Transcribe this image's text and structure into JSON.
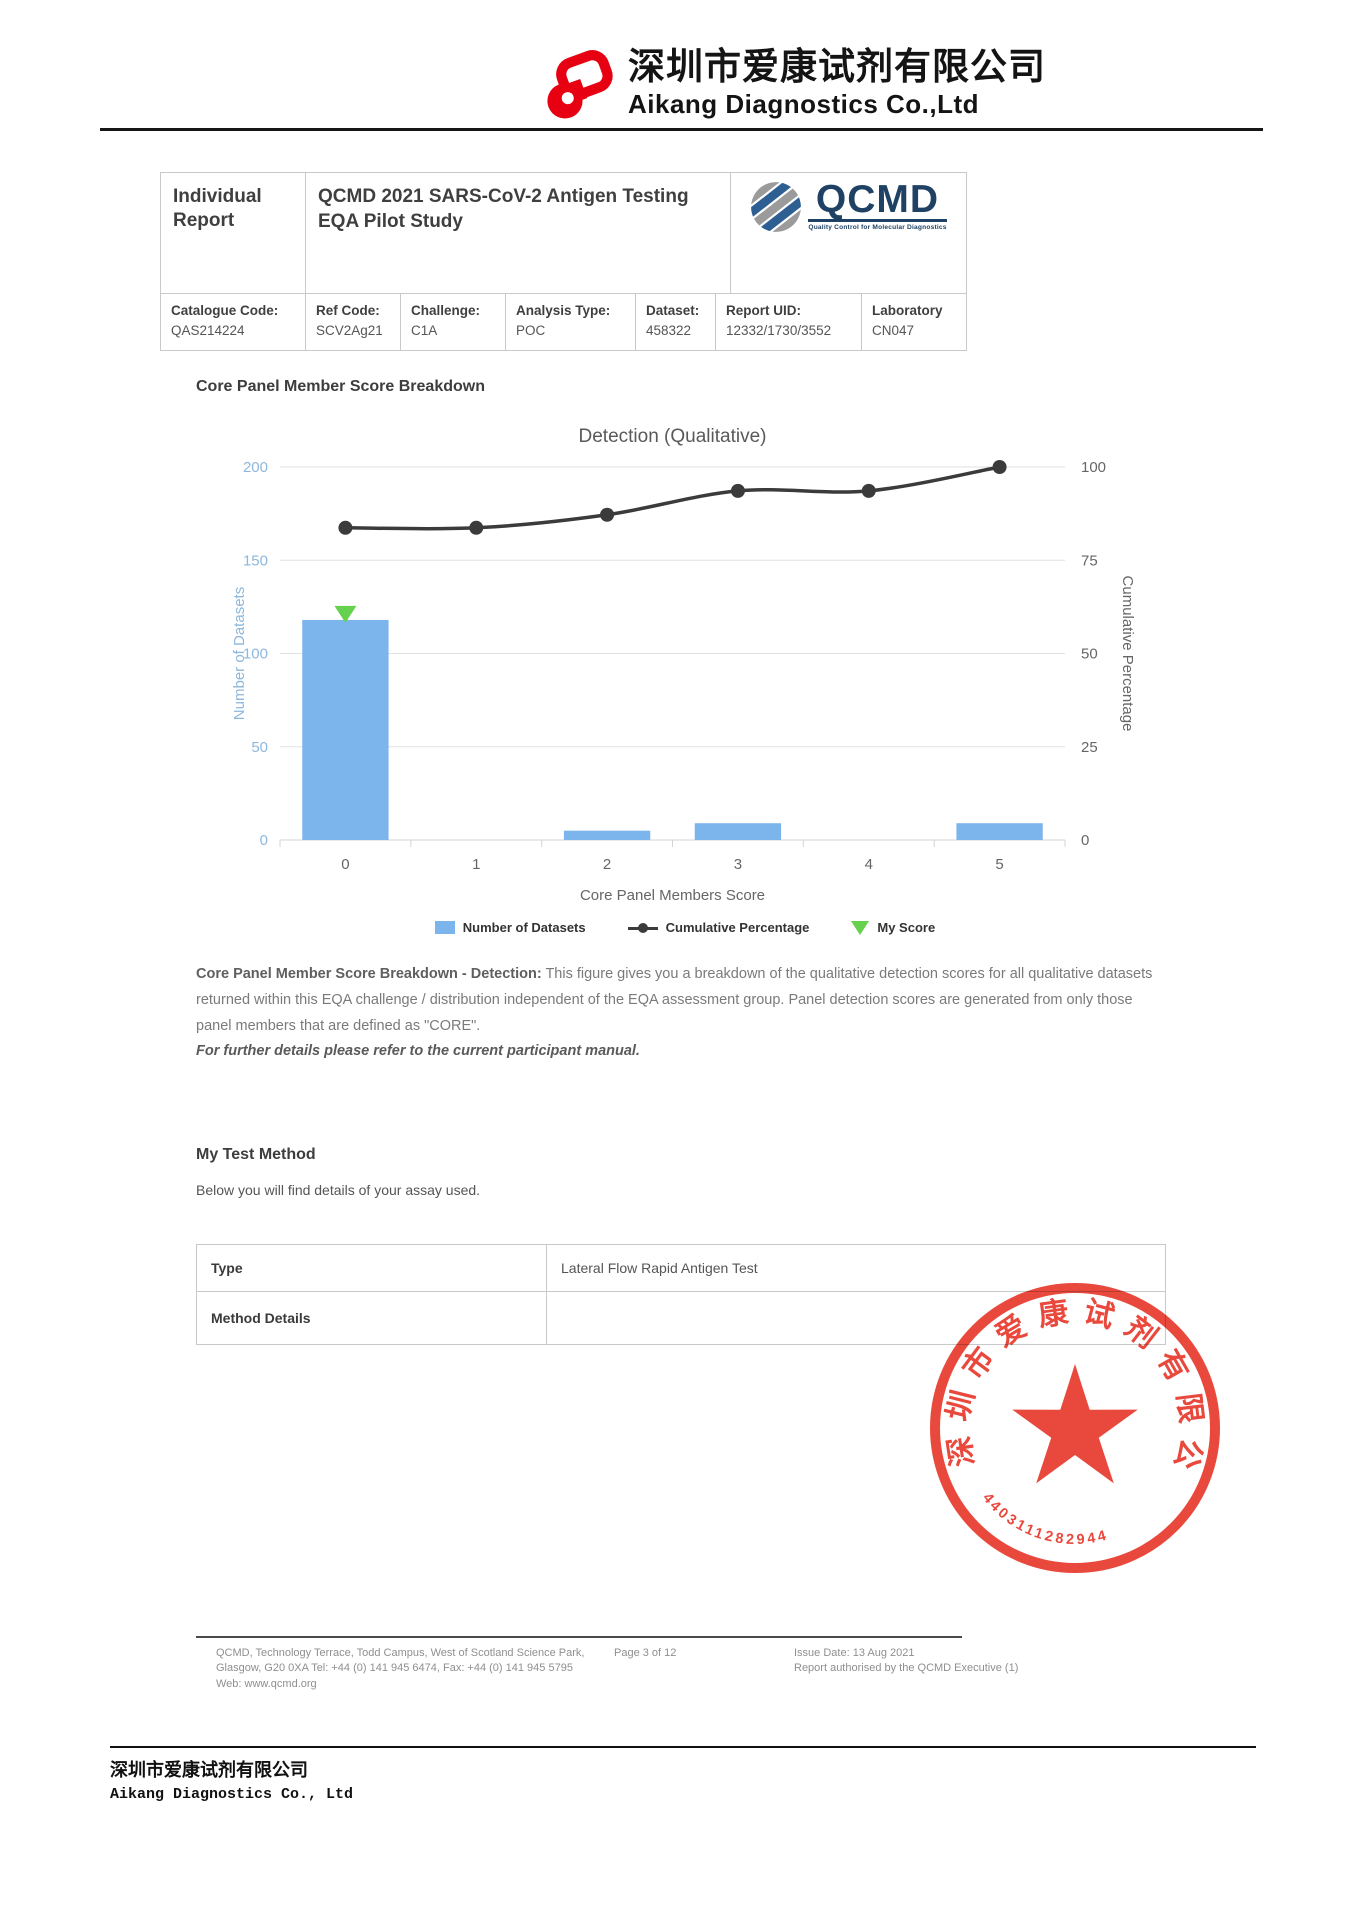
{
  "page_header": {
    "company_cn": "深圳市爱康试剂有限公司",
    "company_en": "Aikang Diagnostics Co.,Ltd"
  },
  "report_header": {
    "report_type": "Individual Report",
    "study_title": "QCMD 2021 SARS-CoV-2 Antigen Testing EQA Pilot Study",
    "qcmd_logo": {
      "acronym": "QCMD",
      "tagline": "Quality Control for Molecular Diagnostics"
    }
  },
  "info_strip": {
    "cells": [
      {
        "label": "Catalogue Code:",
        "value": "QAS214224"
      },
      {
        "label": "Ref Code:",
        "value": "SCV2Ag21"
      },
      {
        "label": "Challenge:",
        "value": "C1A"
      },
      {
        "label": "Analysis Type:",
        "value": "POC"
      },
      {
        "label": "Dataset:",
        "value": "458322"
      },
      {
        "label": "Report UID:",
        "value": "12332/1730/3552"
      },
      {
        "label": "Laboratory",
        "value": "CN047"
      }
    ]
  },
  "section": {
    "title": "Core Panel Member Score Breakdown"
  },
  "chart_data": {
    "type": "bar",
    "title": "Detection (Qualitative)",
    "categories": [
      "0",
      "1",
      "2",
      "3",
      "4",
      "5"
    ],
    "xlabel": "Core Panel Members Score",
    "left_axis": {
      "label": "Number of Datasets",
      "min": 0,
      "max": 200,
      "ticks": [
        0,
        50,
        100,
        150,
        200
      ]
    },
    "right_axis": {
      "label": "Cumulative Percentage",
      "min": 0,
      "max": 100,
      "ticks": [
        0,
        25,
        50,
        75,
        100
      ]
    },
    "series": [
      {
        "name": "Number of Datasets",
        "type": "bar",
        "values": [
          118,
          0,
          5,
          9,
          0,
          9
        ],
        "color": "#7CB5EC"
      },
      {
        "name": "Cumulative Percentage",
        "type": "line",
        "values": [
          83.7,
          83.7,
          87.2,
          93.6,
          93.6,
          100
        ],
        "color": "#3b3b3b"
      },
      {
        "name": "My Score",
        "type": "marker",
        "category_index": 0,
        "color": "#66D14E"
      }
    ],
    "legend": [
      "Number of Datasets",
      "Cumulative Percentage",
      "My Score"
    ],
    "grid": true,
    "legend_position": "bottom"
  },
  "caption": {
    "lead": "Core Panel Member Score Breakdown - Detection:",
    "body": " This figure gives you a breakdown of the qualitative detection scores for all qualitative datasets returned within this EQA challenge / distribution independent of the EQA assessment group. Panel detection scores are generated from only those panel members that are defined as \"CORE\".",
    "note": "For further details please refer to the current participant manual."
  },
  "test_method": {
    "title": "My Test Method",
    "subtitle": "Below you will find details of your assay used.",
    "rows": [
      {
        "label": "Type",
        "value": "Lateral Flow Rapid Antigen Test"
      },
      {
        "label": "Method Details",
        "value": ""
      }
    ]
  },
  "stamp": {
    "text_top": "深圳市爱康试剂有限公司",
    "number": "4403111282944",
    "color": "#E8392C"
  },
  "footer": {
    "address": "QCMD, Technology Terrace, Todd Campus, West of Scotland Science Park, Glasgow, G20 0XA Tel: +44 (0) 141 945 6474, Fax: +44 (0) 141 945 5795 Web: www.qcmd.org",
    "page": "Page 3 of 12",
    "issue_date": "Issue Date: 13 Aug 2021",
    "authorised": "Report authorised by the QCMD Executive (1)"
  },
  "bottom": {
    "company_cn": "深圳市爱康试剂有限公司",
    "company_en": "Aikang Diagnostics Co., Ltd"
  }
}
